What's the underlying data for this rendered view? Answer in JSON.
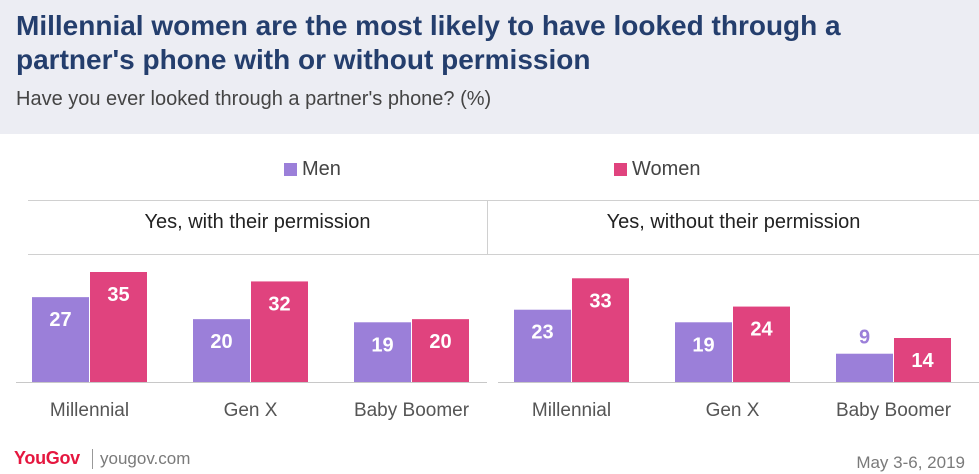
{
  "header": {
    "title": "Millennial women are the most likely to have looked through a partner's phone with or without permission",
    "subtitle": "Have you ever looked through a partner's phone? (%)"
  },
  "chart_data": {
    "type": "bar",
    "title": "Millennial women are the most likely to have looked through a partner's phone with or without permission",
    "subtitle": "Have you ever looked through a partner's phone? (%)",
    "legend": [
      "Men",
      "Women"
    ],
    "legend_position": "top-center",
    "colors": {
      "Men": "#9b7fd9",
      "Women": "#e0437e"
    },
    "ylim": [
      0,
      40
    ],
    "grid": false,
    "panels": [
      {
        "title": "Yes, with their permission",
        "categories": [
          "Millennial",
          "Gen X",
          "Baby Boomer"
        ],
        "series": [
          {
            "name": "Men",
            "values": [
              27,
              20,
              19
            ]
          },
          {
            "name": "Women",
            "values": [
              35,
              32,
              20
            ]
          }
        ]
      },
      {
        "title": "Yes, without their permission",
        "categories": [
          "Millennial",
          "Gen X",
          "Baby Boomer"
        ],
        "series": [
          {
            "name": "Men",
            "values": [
              23,
              19,
              9
            ]
          },
          {
            "name": "Women",
            "values": [
              33,
              24,
              14
            ]
          }
        ]
      }
    ]
  },
  "footer": {
    "brand": "YouGov",
    "url": "yougov.com",
    "date": "May 3-6, 2019"
  },
  "colors": {
    "header_bg": "#ecedf3",
    "title": "#243e6d",
    "brand": "#e5173f"
  }
}
